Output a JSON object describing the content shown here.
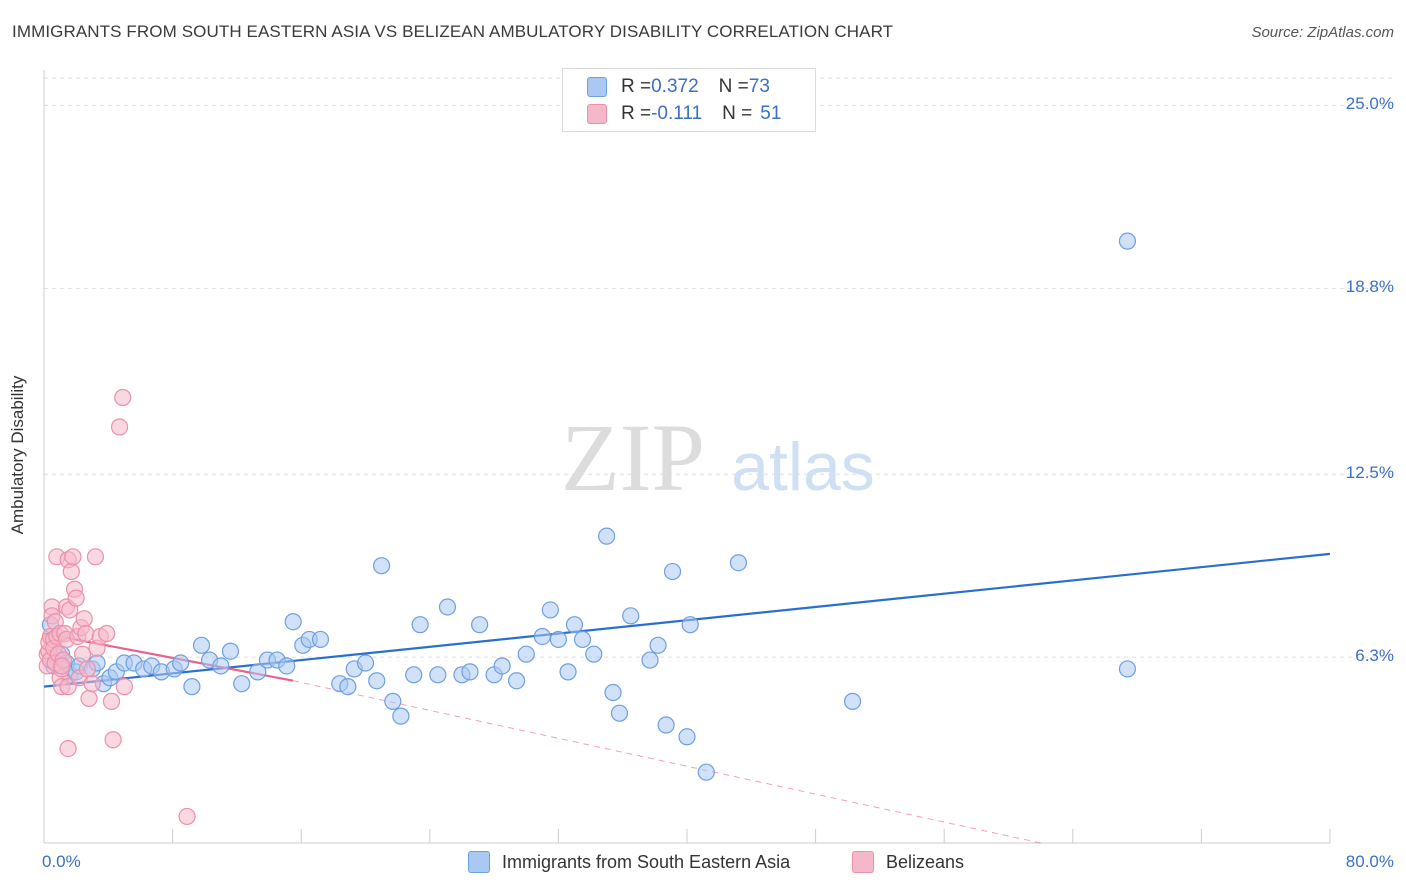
{
  "title": "IMMIGRANTS FROM SOUTH EASTERN ASIA VS BELIZEAN AMBULATORY DISABILITY CORRELATION CHART",
  "source": "Source: ZipAtlas.com",
  "watermark": {
    "zip": "ZIP",
    "atlas": "atlas"
  },
  "legend_top": [
    {
      "r_label": "R = ",
      "r_value": "0.372",
      "n_label": "N = ",
      "n_value": "73"
    },
    {
      "r_label": "R = ",
      "r_value": "-0.111",
      "n_label": "N = ",
      "n_value": "51"
    }
  ],
  "legend_bottom": [
    "Immigrants from South Eastern Asia",
    "Belizeans"
  ],
  "colors": {
    "blue_fill": "#a9c9f2",
    "blue_stroke": "#6e9fe0",
    "blue_line": "#2a6fd0",
    "pink_fill": "#f5b8cb",
    "pink_stroke": "#ec8fab",
    "pink_line": "#e8628c",
    "tick_text": "#3a6fc4",
    "grid": "#dddddd"
  },
  "chart_data": {
    "type": "scatter",
    "title": "IMMIGRANTS FROM SOUTH EASTERN ASIA VS BELIZEAN AMBULATORY DISABILITY CORRELATION CHART",
    "xlabel": "",
    "ylabel": "Ambulatory Disability",
    "xlim": [
      0,
      80
    ],
    "ylim": [
      0,
      26.2
    ],
    "x_tick_labels": [
      "0.0%",
      "80.0%"
    ],
    "y_ticks": [
      6.3,
      12.5,
      18.8,
      25.0
    ],
    "y_tick_labels": [
      "6.3%",
      "12.5%",
      "18.8%",
      "25.0%"
    ],
    "grid": "horizontal dashed",
    "legend_position": "top-center",
    "series": [
      {
        "name": "Immigrants from South Eastern Asia",
        "color": "#6e9fe0",
        "points": [
          [
            0.4,
            7.4
          ],
          [
            0.6,
            6.0
          ],
          [
            0.8,
            6.3
          ],
          [
            1.1,
            6.4
          ],
          [
            1.4,
            6.1
          ],
          [
            1.6,
            5.7
          ],
          [
            2.0,
            5.8
          ],
          [
            2.2,
            6.0
          ],
          [
            3.0,
            5.9
          ],
          [
            3.3,
            6.1
          ],
          [
            3.7,
            5.4
          ],
          [
            4.1,
            5.6
          ],
          [
            4.5,
            5.8
          ],
          [
            5.0,
            6.1
          ],
          [
            5.6,
            6.1
          ],
          [
            6.2,
            5.9
          ],
          [
            6.7,
            6.0
          ],
          [
            7.3,
            5.8
          ],
          [
            8.1,
            5.9
          ],
          [
            8.5,
            6.1
          ],
          [
            9.2,
            5.3
          ],
          [
            9.8,
            6.7
          ],
          [
            10.3,
            6.2
          ],
          [
            11.0,
            6.0
          ],
          [
            11.6,
            6.5
          ],
          [
            12.3,
            5.4
          ],
          [
            13.3,
            5.8
          ],
          [
            13.9,
            6.2
          ],
          [
            14.5,
            6.2
          ],
          [
            15.1,
            6.0
          ],
          [
            15.5,
            7.5
          ],
          [
            16.1,
            6.7
          ],
          [
            16.5,
            6.9
          ],
          [
            17.2,
            6.9
          ],
          [
            18.4,
            5.4
          ],
          [
            18.9,
            5.3
          ],
          [
            19.3,
            5.9
          ],
          [
            20.0,
            6.1
          ],
          [
            20.7,
            5.5
          ],
          [
            21.0,
            9.4
          ],
          [
            21.7,
            4.8
          ],
          [
            22.2,
            4.3
          ],
          [
            23.0,
            5.7
          ],
          [
            23.4,
            7.4
          ],
          [
            24.5,
            5.7
          ],
          [
            25.1,
            8.0
          ],
          [
            26.0,
            5.7
          ],
          [
            26.5,
            5.8
          ],
          [
            27.1,
            7.4
          ],
          [
            28.0,
            5.7
          ],
          [
            28.5,
            6.0
          ],
          [
            29.4,
            5.5
          ],
          [
            30.0,
            6.4
          ],
          [
            31.0,
            7.0
          ],
          [
            31.5,
            7.9
          ],
          [
            32.0,
            6.9
          ],
          [
            32.6,
            5.8
          ],
          [
            33.0,
            7.4
          ],
          [
            33.5,
            6.9
          ],
          [
            34.2,
            6.4
          ],
          [
            35.0,
            10.4
          ],
          [
            35.4,
            5.1
          ],
          [
            35.8,
            4.4
          ],
          [
            36.5,
            7.7
          ],
          [
            37.7,
            6.2
          ],
          [
            38.2,
            6.7
          ],
          [
            38.7,
            4.0
          ],
          [
            39.1,
            9.2
          ],
          [
            40.0,
            3.6
          ],
          [
            40.2,
            7.4
          ],
          [
            41.2,
            2.4
          ],
          [
            43.2,
            9.5
          ],
          [
            50.3,
            4.8
          ],
          [
            67.4,
            5.9
          ],
          [
            67.4,
            20.4
          ]
        ]
      },
      {
        "name": "Belizeans",
        "color": "#ec8fab",
        "points": [
          [
            0.2,
            6.4
          ],
          [
            0.2,
            6.0
          ],
          [
            0.3,
            6.5
          ],
          [
            0.3,
            6.8
          ],
          [
            0.4,
            7.0
          ],
          [
            0.4,
            6.2
          ],
          [
            0.5,
            8.0
          ],
          [
            0.5,
            7.7
          ],
          [
            0.6,
            6.9
          ],
          [
            0.6,
            6.6
          ],
          [
            0.7,
            6.1
          ],
          [
            0.7,
            7.5
          ],
          [
            0.8,
            9.7
          ],
          [
            0.8,
            7.0
          ],
          [
            0.9,
            6.4
          ],
          [
            1.0,
            5.6
          ],
          [
            1.0,
            7.1
          ],
          [
            1.1,
            5.9
          ],
          [
            1.1,
            5.3
          ],
          [
            1.2,
            6.2
          ],
          [
            1.3,
            7.1
          ],
          [
            1.4,
            8.0
          ],
          [
            1.4,
            6.9
          ],
          [
            1.5,
            9.6
          ],
          [
            1.5,
            5.3
          ],
          [
            1.6,
            7.9
          ],
          [
            1.7,
            9.2
          ],
          [
            1.8,
            9.7
          ],
          [
            1.9,
            8.6
          ],
          [
            2.0,
            8.3
          ],
          [
            2.1,
            7.0
          ],
          [
            2.2,
            5.6
          ],
          [
            2.3,
            7.3
          ],
          [
            2.4,
            6.4
          ],
          [
            2.5,
            7.6
          ],
          [
            2.6,
            7.1
          ],
          [
            2.7,
            5.9
          ],
          [
            2.8,
            4.9
          ],
          [
            3.0,
            5.4
          ],
          [
            3.2,
            9.7
          ],
          [
            3.3,
            6.6
          ],
          [
            3.5,
            7.0
          ],
          [
            3.9,
            7.1
          ],
          [
            4.2,
            4.8
          ],
          [
            4.3,
            3.5
          ],
          [
            4.7,
            14.1
          ],
          [
            4.9,
            15.1
          ],
          [
            5.0,
            5.3
          ],
          [
            1.5,
            3.2
          ],
          [
            1.1,
            6.0
          ],
          [
            8.9,
            0.9
          ]
        ]
      }
    ],
    "trend_lines": [
      {
        "series": "Immigrants from South Eastern Asia",
        "x1": 0,
        "y1": 5.3,
        "x2": 80,
        "y2": 9.8,
        "style": "solid"
      },
      {
        "series": "Belizeans",
        "x1": 0,
        "y1": 7.1,
        "x2": 15.5,
        "y2": 5.5,
        "style": "solid"
      },
      {
        "series": "Belizeans",
        "x1": 15.5,
        "y1": 5.5,
        "x2": 62,
        "y2": 0,
        "style": "dashed"
      }
    ]
  }
}
